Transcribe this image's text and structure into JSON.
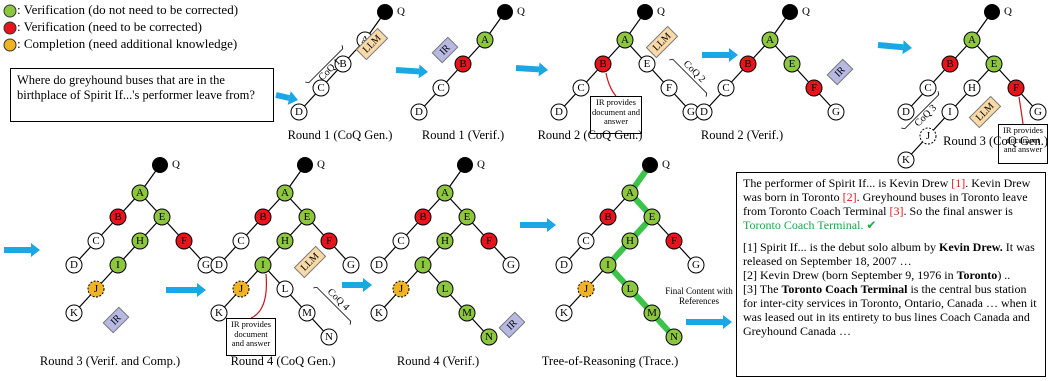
{
  "legend": [
    ": Verification (do not need to be corrected)",
    ": Verification (need to be corrected)",
    ": Completion (need additional knowledge)"
  ],
  "question": "Where do greyhound buses that are in the birthplace of Spirit If...'s performer leave from?",
  "panels": [
    {
      "caption": "Round 1 (CoQ Gen.)",
      "root": "Q",
      "nodes": [
        "A",
        "B",
        "C",
        "D"
      ],
      "llm": "LLM",
      "coq": "CoQ 1"
    },
    {
      "caption": "Round 1 (Verif.)",
      "root": "Q",
      "nodes": [
        "A",
        "B",
        "C",
        "D"
      ],
      "ir": "IR"
    },
    {
      "caption": "Round 2 (CoQ Gen.)",
      "root": "Q",
      "nodes": [
        "A",
        "B",
        "C",
        "D",
        "E",
        "F",
        "G"
      ],
      "llm": "LLM",
      "coq": "CoQ 2",
      "note": "IR provides document and answer"
    },
    {
      "caption": "Round 2 (Verif.)",
      "root": "Q",
      "nodes": [
        "A",
        "B",
        "C",
        "D",
        "E",
        "F",
        "G"
      ],
      "ir": "IR"
    },
    {
      "caption": "Round 3 (CoQ Gen.)",
      "root": "Q",
      "nodes": [
        "A",
        "B",
        "C",
        "D",
        "E",
        "F",
        "G",
        "H",
        "I",
        "J",
        "K"
      ],
      "llm": "LLM",
      "coq": "CoQ 3",
      "note": "IR provides document and answer"
    },
    {
      "caption": "Round 3 (Verif. and Comp.)",
      "root": "Q",
      "nodes": [
        "A",
        "B",
        "C",
        "D",
        "E",
        "F",
        "G",
        "H",
        "I",
        "J",
        "K"
      ],
      "ir": "IR"
    },
    {
      "caption": "Round 4 (CoQ Gen.)",
      "root": "Q",
      "nodes": [
        "A",
        "B",
        "C",
        "D",
        "E",
        "F",
        "G",
        "H",
        "I",
        "J",
        "K",
        "L",
        "M",
        "N"
      ],
      "llm": "LLM",
      "coq": "CoQ 4",
      "note": "IR provides document and answer"
    },
    {
      "caption": "Round 4 (Verif.)",
      "root": "Q",
      "nodes": [
        "A",
        "B",
        "C",
        "D",
        "E",
        "F",
        "G",
        "H",
        "I",
        "J",
        "K",
        "L",
        "M",
        "N"
      ],
      "ir": "IR"
    },
    {
      "caption": "Tree-of-Reasoning (Trace.)",
      "root": "Q",
      "nodes": [
        "A",
        "B",
        "C",
        "D",
        "E",
        "F",
        "G",
        "H",
        "I",
        "J",
        "K",
        "L",
        "M",
        "N"
      ]
    }
  ],
  "final_label": "Final Content with References",
  "answer": {
    "parts": [
      "The performer of Spirit If... is Kevin Drew ",
      "[1]",
      ". Kevin Drew was born in Toronto ",
      "[2]",
      ". Greyhound buses in Toronto leave from Toronto Coach Terminal ",
      "[3]",
      ". So the final answer is ",
      "Toronto Coach Terminal.",
      " ✔"
    ],
    "refs": [
      [
        "[1] Spirit If... is the debut solo album by ",
        "Kevin Drew.",
        " It was released on September 18, 2007 …"
      ],
      [
        "[2] Kevin Drew (born September 9, 1976 in ",
        "Toronto",
        ") .."
      ],
      [
        "[3] The ",
        "Toronto Coach Terminal",
        " is the central bus station for inter-city services in Toronto, Ontario, Canada … when it was leased out in its entirety to bus lines Coach Canada and Greyhound Canada …"
      ]
    ]
  }
}
